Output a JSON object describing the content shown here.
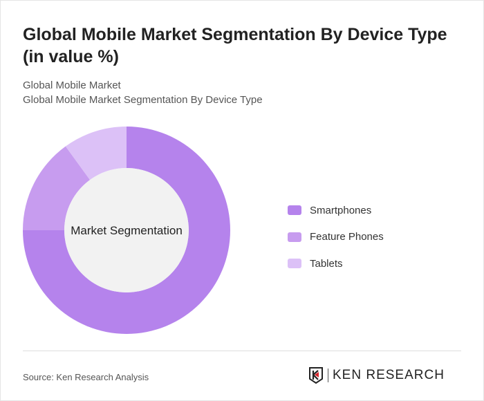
{
  "title": "Global Mobile Market Segmentation By Device Type (in value %)",
  "subtitle1": "Global Mobile Market",
  "subtitle2": "Global Mobile Market Segmentation By Device Type",
  "source": "Source: Ken Research Analysis",
  "logo_text": "KEN RESEARCH",
  "chart_data": {
    "type": "pie",
    "variant": "donut",
    "center_label": "Market Segmentation",
    "categories": [
      "Smartphones",
      "Feature Phones",
      "Tablets"
    ],
    "values": [
      75,
      15,
      10
    ],
    "colors": [
      "#b583ec",
      "#c79cef",
      "#dcc1f7"
    ],
    "legend_position": "right"
  }
}
